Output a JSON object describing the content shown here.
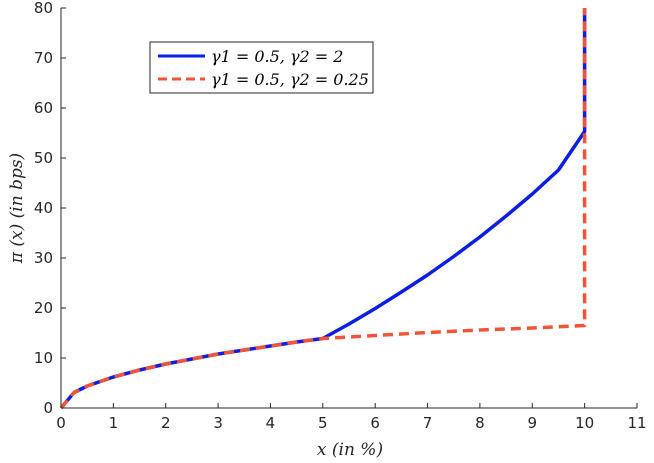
{
  "chart_data": {
    "type": "line",
    "title": "",
    "xlabel": "x (in %)",
    "ylabel": "π (x) (in bps)",
    "xlim": [
      0,
      11
    ],
    "ylim": [
      0,
      80
    ],
    "xticks": [
      0,
      1,
      2,
      3,
      4,
      5,
      6,
      7,
      8,
      9,
      10,
      11
    ],
    "yticks": [
      0,
      10,
      20,
      30,
      40,
      50,
      60,
      70,
      80
    ],
    "grid": false,
    "legend_position": "top-left",
    "series": [
      {
        "name": "γ1 = 0.5, γ2 = 2",
        "color": "#0a1ee6",
        "style": "solid",
        "points": [
          [
            0,
            0
          ],
          [
            0.25,
            3.1
          ],
          [
            0.5,
            4.4
          ],
          [
            1,
            6.2
          ],
          [
            1.5,
            7.6
          ],
          [
            2,
            8.8
          ],
          [
            2.5,
            9.8
          ],
          [
            3,
            10.8
          ],
          [
            3.5,
            11.6
          ],
          [
            4,
            12.4
          ],
          [
            4.5,
            13.2
          ],
          [
            5,
            13.9
          ],
          [
            5.5,
            16.8
          ],
          [
            6,
            19.9
          ],
          [
            6.5,
            23.2
          ],
          [
            7,
            26.6
          ],
          [
            7.5,
            30.3
          ],
          [
            8,
            34.2
          ],
          [
            8.5,
            38.4
          ],
          [
            9,
            42.8
          ],
          [
            9.5,
            47.6
          ],
          [
            10,
            55.3
          ],
          [
            10,
            80
          ]
        ]
      },
      {
        "name": "γ1 = 0.5, γ2 = 0.25",
        "color": "#f0553c",
        "style": "dashed",
        "points": [
          [
            0,
            0
          ],
          [
            0.25,
            3.1
          ],
          [
            0.5,
            4.4
          ],
          [
            1,
            6.2
          ],
          [
            1.5,
            7.6
          ],
          [
            2,
            8.8
          ],
          [
            2.5,
            9.8
          ],
          [
            3,
            10.8
          ],
          [
            3.5,
            11.6
          ],
          [
            4,
            12.4
          ],
          [
            4.5,
            13.2
          ],
          [
            5,
            13.9
          ],
          [
            6,
            14.5
          ],
          [
            7,
            15.1
          ],
          [
            8,
            15.6
          ],
          [
            9,
            16.0
          ],
          [
            10,
            16.5
          ],
          [
            10,
            80
          ]
        ]
      }
    ]
  },
  "legend": {
    "entries": [
      "γ1 = 0.5, γ2 = 2",
      "γ1 = 0.5, γ2 = 0.25"
    ]
  }
}
